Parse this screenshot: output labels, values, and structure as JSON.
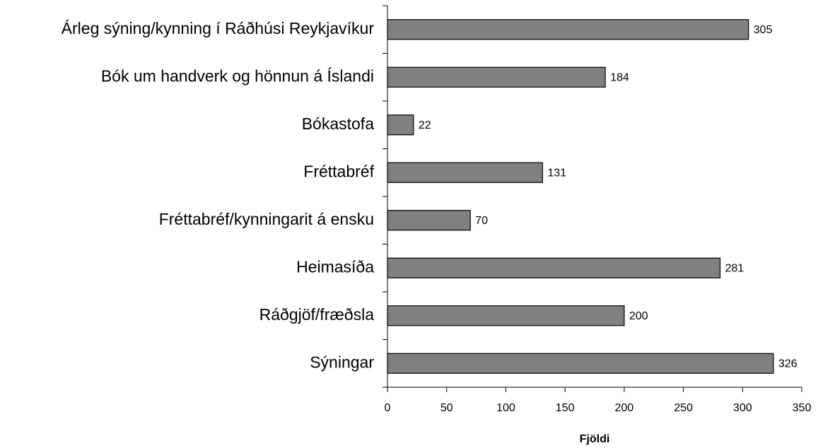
{
  "chart_data": {
    "type": "bar",
    "orientation": "horizontal",
    "categories": [
      "Árleg sýning/kynning í Ráðhúsi Reykjavíkur",
      "Bók um handverk og hönnun á Íslandi",
      "Bókastofa",
      "Fréttabréf",
      "Fréttabréf/kynningarit á ensku",
      "Heimasíða",
      "Ráðgjöf/fræðsla",
      "Sýningar"
    ],
    "values": [
      305,
      184,
      22,
      131,
      70,
      281,
      200,
      326
    ],
    "color": "#808080",
    "x_label": "Fjöldi",
    "xlim": [
      0,
      350
    ],
    "xticks": [
      0,
      50,
      100,
      150,
      200,
      250,
      300,
      350
    ],
    "grid": false
  }
}
